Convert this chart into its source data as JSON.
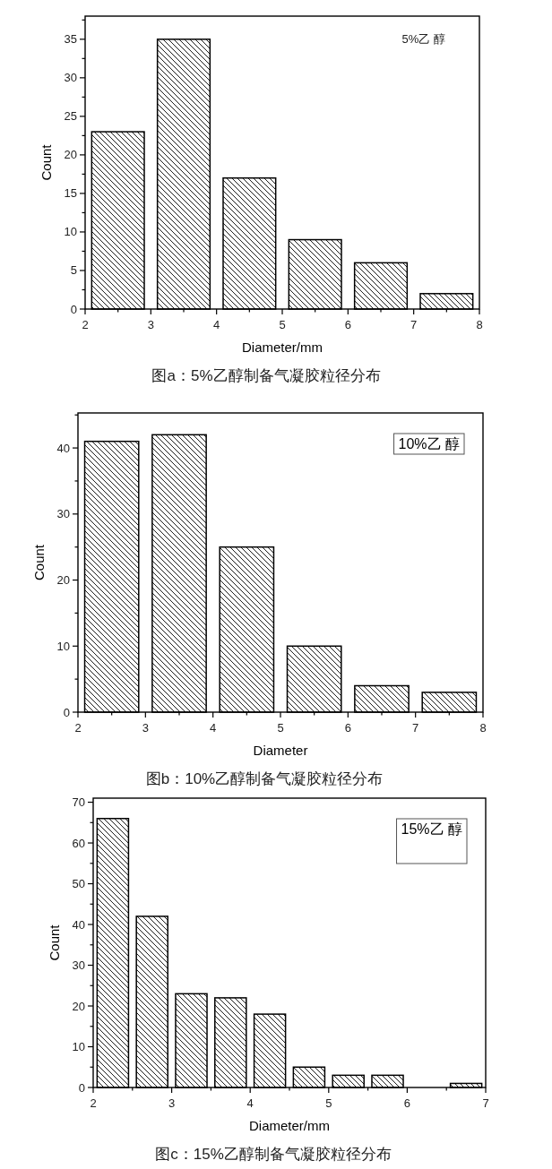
{
  "chart_data": [
    {
      "type": "histogram",
      "title": "图a：5%乙醇制备气凝胶粒径分布",
      "xlabel": "Diameter/mm",
      "ylabel": "Count",
      "bins": [
        2,
        3,
        4,
        5,
        6,
        7,
        8
      ],
      "values": [
        23,
        35,
        17,
        9,
        6,
        2
      ],
      "color": "#000000",
      "xlim": [
        2,
        8
      ],
      "ylim": [
        0,
        38
      ],
      "xticks": [
        2,
        {
          "value": 2.5,
          "label": null
        },
        3,
        {
          "value": 3.5,
          "label": null
        },
        4,
        {
          "value": 4.5,
          "label": null
        },
        5,
        {
          "value": 5.5,
          "label": null
        },
        6,
        {
          "value": 6.5,
          "label": null
        },
        7,
        {
          "value": 7.5,
          "label": null
        },
        8
      ],
      "yticks": [
        0,
        {
          "value": 2.5,
          "label": null
        },
        5,
        {
          "value": 7.5,
          "label": null
        },
        10,
        {
          "value": 12.5,
          "label": null
        },
        15,
        {
          "value": 17.5,
          "label": null
        },
        20,
        {
          "value": 22.5,
          "label": null
        },
        25,
        {
          "value": 27.5,
          "label": null
        },
        30,
        {
          "value": 32.5,
          "label": null
        },
        35,
        {
          "value": 37.5,
          "label": null
        }
      ],
      "annotations": [
        "5%乙 醇"
      ]
    },
    {
      "type": "histogram",
      "title": "图b：10%乙醇制备气凝胶粒径分布",
      "xlabel": "Diameter",
      "ylabel": "Count",
      "bins": [
        2,
        3,
        4,
        5,
        6,
        7,
        8
      ],
      "values": [
        41,
        42,
        25,
        10,
        4,
        3
      ],
      "color": "#000000",
      "xlim": [
        2,
        8
      ],
      "ylim": [
        0,
        45.3
      ],
      "xticks": [
        2,
        {
          "value": 2.5,
          "label": null
        },
        3,
        {
          "value": 3.5,
          "label": null
        },
        4,
        {
          "value": 4.5,
          "label": null
        },
        5,
        {
          "value": 5.5,
          "label": null
        },
        6,
        {
          "value": 6.5,
          "label": null
        },
        7,
        {
          "value": 7.5,
          "label": null
        },
        8
      ],
      "yticks": [
        0,
        {
          "value": 5,
          "label": null
        },
        10,
        {
          "value": 15,
          "label": null
        },
        20,
        {
          "value": 25,
          "label": null
        },
        30,
        {
          "value": 35,
          "label": null
        },
        40,
        {
          "value": 45,
          "label": null
        }
      ],
      "annotations": [
        "10%乙 醇"
      ]
    },
    {
      "type": "histogram",
      "title": "图c：15%乙醇制备气凝胶粒径分布",
      "xlabel": "Diameter/mm",
      "ylabel": "Count",
      "bins": [
        2,
        2.5,
        3,
        3.5,
        4,
        4.5,
        5,
        5.5,
        6,
        6.5,
        7
      ],
      "values": [
        66,
        42,
        23,
        22,
        18,
        5,
        3,
        3,
        0,
        1
      ],
      "color": "#000000",
      "xlim": [
        2,
        7
      ],
      "ylim": [
        0,
        71
      ],
      "xticks": [
        2,
        {
          "value": 2.5,
          "label": null
        },
        3,
        {
          "value": 3.5,
          "label": null
        },
        4,
        {
          "value": 4.5,
          "label": null
        },
        5,
        {
          "value": 5.5,
          "label": null
        },
        6,
        {
          "value": 6.5,
          "label": null
        },
        7
      ],
      "yticks": [
        0,
        {
          "value": 5,
          "label": null
        },
        10,
        {
          "value": 15,
          "label": null
        },
        20,
        {
          "value": 25,
          "label": null
        },
        30,
        {
          "value": 35,
          "label": null
        },
        40,
        {
          "value": 45,
          "label": null
        },
        50,
        {
          "value": 55,
          "label": null
        },
        60,
        {
          "value": 65,
          "label": null
        },
        70
      ],
      "annotations": [
        "15%乙 醇"
      ]
    }
  ]
}
